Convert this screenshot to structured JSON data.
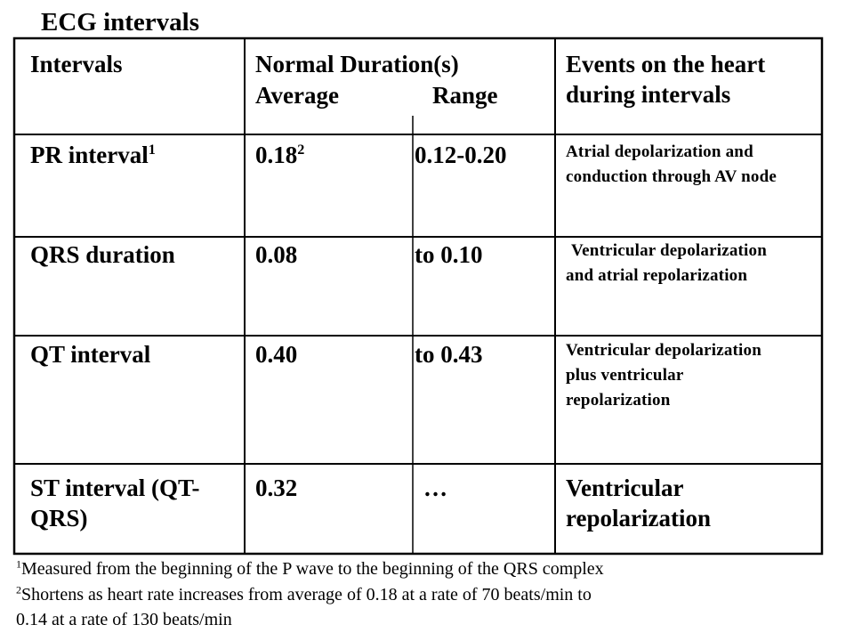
{
  "title": "ECG intervals",
  "header": {
    "intervals": "Intervals",
    "normal_duration": "Normal Duration(s)",
    "average": "Average",
    "range": "Range",
    "events": "Events on the heart during intervals"
  },
  "rows": [
    {
      "interval": "PR interval",
      "interval_sup": "1",
      "average": "0.18",
      "average_sup": "2",
      "range": "0.12-0.20",
      "events": "Atrial depolarization and conduction through AV node"
    },
    {
      "interval": "QRS duration",
      "average": "0.08",
      "range": "to 0.10",
      "events": "Ventricular depolarization and atrial repolarization"
    },
    {
      "interval": "QT interval",
      "average": "0.40",
      "range": "to 0.43",
      "events": "Ventricular depolarization plus ventricular repolarization"
    },
    {
      "interval": "ST interval (QT-QRS)",
      "average": "0.32",
      "range": "…",
      "events": "Ventricular repolarization"
    }
  ],
  "footnotes": [
    {
      "marker": "1",
      "text": "Measured from the beginning of the P wave to the beginning of the QRS complex"
    },
    {
      "marker": "2",
      "text_line1": "Shortens as heart rate increases from average of 0.18 at a rate of 70 beats/min to",
      "text_line2": "0.14 at a rate of 130 beats/min"
    }
  ]
}
